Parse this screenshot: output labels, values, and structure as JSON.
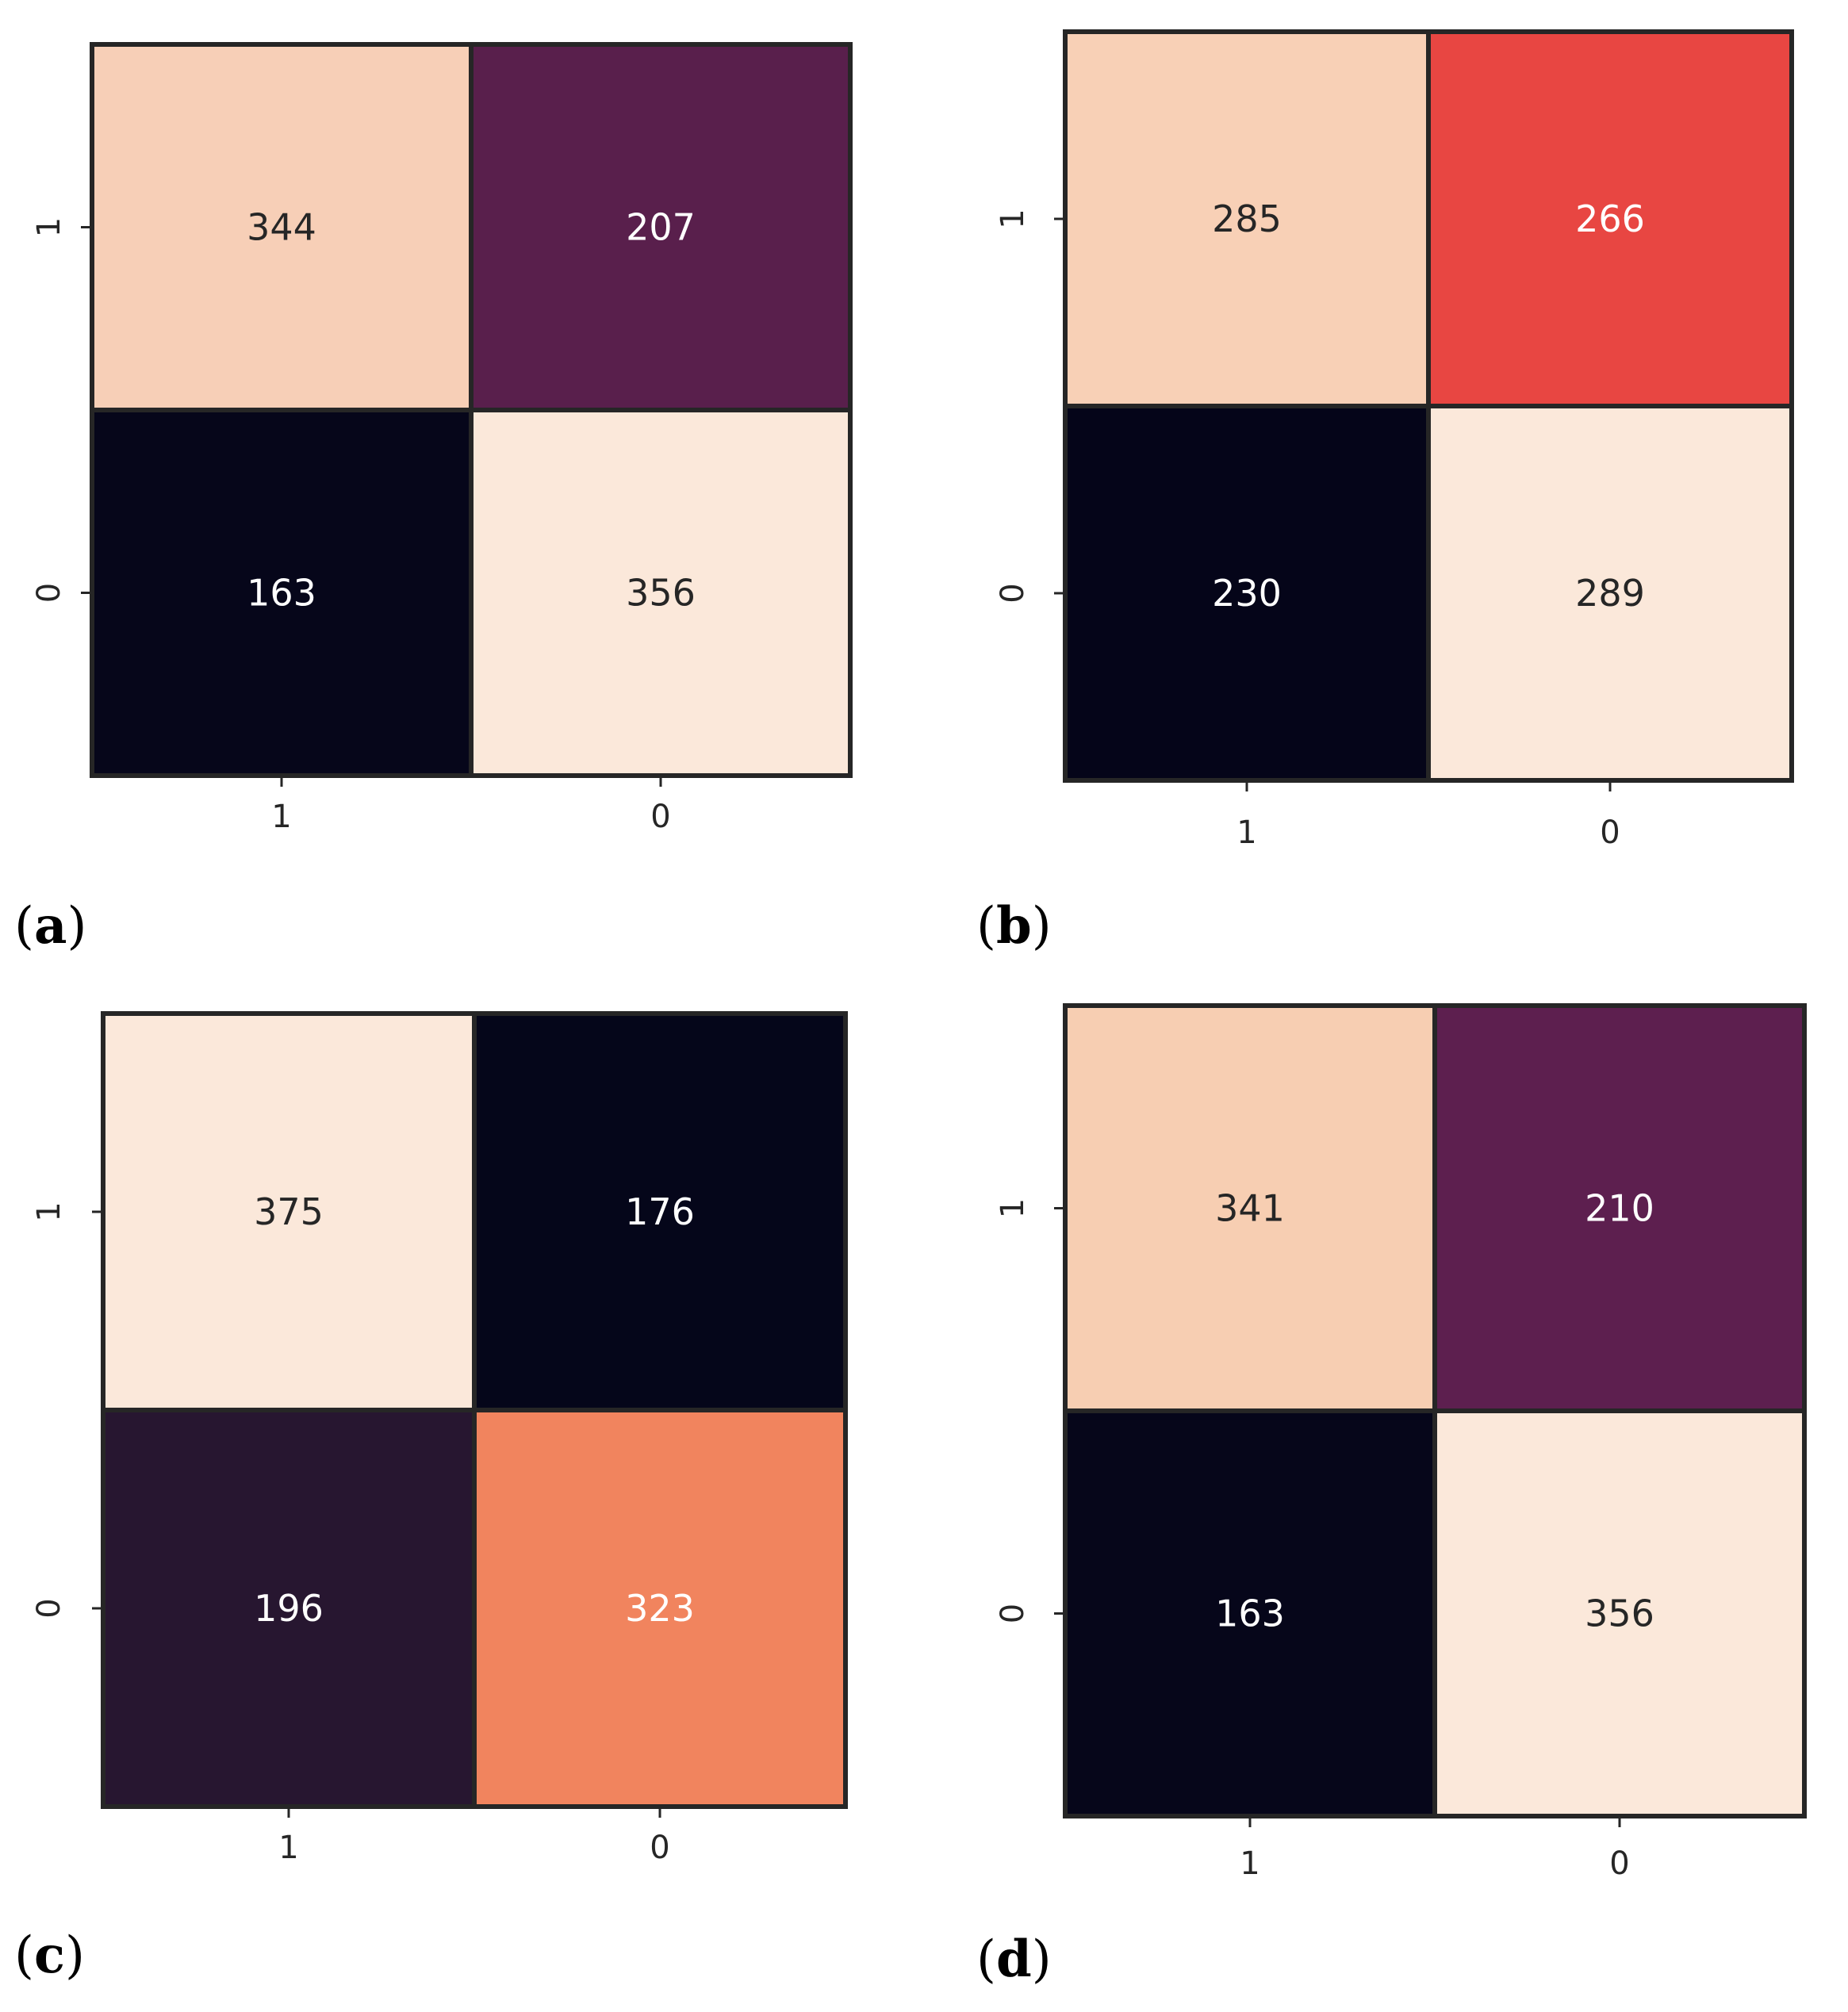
{
  "chart_data": [
    {
      "type": "heatmap",
      "panel_label": "a",
      "rows": [
        "1",
        "0"
      ],
      "columns": [
        "1",
        "0"
      ],
      "values": [
        [
          344,
          207
        ],
        [
          163,
          356
        ]
      ],
      "colors": [
        [
          "#f7cfb7",
          "#591f4c"
        ],
        [
          "#06061a",
          "#fbe8da"
        ]
      ],
      "text_colors": [
        [
          "#262626",
          "#ffffff"
        ],
        [
          "#ffffff",
          "#262626"
        ]
      ],
      "colorbar": false,
      "grid": false
    },
    {
      "type": "heatmap",
      "panel_label": "b",
      "rows": [
        "1",
        "0"
      ],
      "columns": [
        "1",
        "0"
      ],
      "values": [
        [
          285,
          266
        ],
        [
          230,
          289
        ]
      ],
      "colors": [
        [
          "#f8d0b6",
          "#e84642"
        ],
        [
          "#050519",
          "#fbe8da"
        ]
      ],
      "text_colors": [
        [
          "#262626",
          "#ffffff"
        ],
        [
          "#ffffff",
          "#262626"
        ]
      ],
      "colorbar": false,
      "grid": false
    },
    {
      "type": "heatmap",
      "panel_label": "c",
      "rows": [
        "1",
        "0"
      ],
      "columns": [
        "1",
        "0"
      ],
      "values": [
        [
          375,
          176
        ],
        [
          196,
          323
        ]
      ],
      "colors": [
        [
          "#fbe8da",
          "#05061a"
        ],
        [
          "#271630",
          "#f1845e"
        ]
      ],
      "text_colors": [
        [
          "#262626",
          "#ffffff"
        ],
        [
          "#ffffff",
          "#ffffff"
        ]
      ],
      "colorbar": false,
      "grid": false
    },
    {
      "type": "heatmap",
      "panel_label": "d",
      "rows": [
        "1",
        "0"
      ],
      "columns": [
        "1",
        "0"
      ],
      "values": [
        [
          341,
          210
        ],
        [
          163,
          356
        ]
      ],
      "colors": [
        [
          "#f7ceb2",
          "#5d1f4f"
        ],
        [
          "#06061a",
          "#fbe8da"
        ]
      ],
      "text_colors": [
        [
          "#262626",
          "#ffffff"
        ],
        [
          "#ffffff",
          "#262626"
        ]
      ],
      "colorbar": false,
      "grid": false
    }
  ]
}
